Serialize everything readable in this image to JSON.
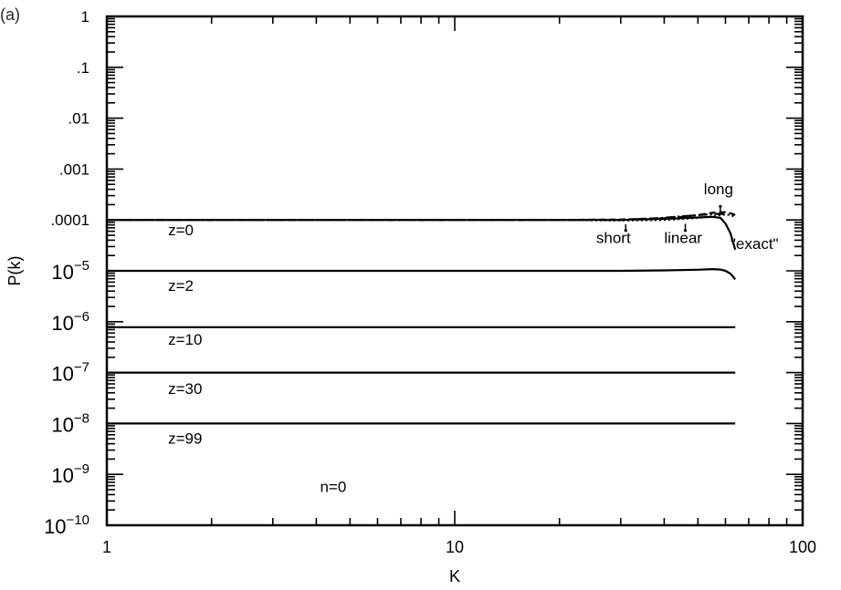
{
  "chart_data": {
    "type": "line",
    "title": "",
    "panel_label": "(a)",
    "xlabel": "K",
    "ylabel": "P(k)",
    "xscale": "log",
    "yscale": "log",
    "xlim": [
      1,
      100
    ],
    "ylim": [
      1e-10,
      1
    ],
    "grid": false,
    "x_ticks": [
      {
        "value": 1,
        "label": "1"
      },
      {
        "value": 10,
        "label": "10"
      },
      {
        "value": 100,
        "label": "100"
      }
    ],
    "y_ticks": [
      {
        "value": 1,
        "label": "1",
        "base": "",
        "exp": ""
      },
      {
        "value": 0.1,
        "label": ".1",
        "base": "",
        "exp": ""
      },
      {
        "value": 0.01,
        "label": ".01",
        "base": "",
        "exp": ""
      },
      {
        "value": 0.001,
        "label": ".001",
        "base": "",
        "exp": ""
      },
      {
        "value": 0.0001,
        "label": ".0001",
        "base": "",
        "exp": ""
      },
      {
        "value": 1e-05,
        "label": "",
        "base": "10",
        "exp": "−5"
      },
      {
        "value": 1e-06,
        "label": "",
        "base": "10",
        "exp": "−6"
      },
      {
        "value": 1e-07,
        "label": "",
        "base": "10",
        "exp": "−7"
      },
      {
        "value": 1e-08,
        "label": "",
        "base": "10",
        "exp": "−8"
      },
      {
        "value": 1e-09,
        "label": "",
        "base": "10",
        "exp": "−9"
      },
      {
        "value": 1e-10,
        "label": "",
        "base": "10",
        "exp": "−10"
      }
    ],
    "series": [
      {
        "style": "solid",
        "color": "#000000",
        "x": [
          1,
          10,
          20,
          30,
          40,
          45,
          50,
          55,
          58,
          60,
          62,
          63,
          64
        ],
        "y": [
          0.0001,
          0.0001,
          0.0001,
          0.0001,
          0.000105,
          0.000108,
          0.000112,
          0.000115,
          0.00011,
          8.5e-05,
          5.5e-05,
          3.8e-05,
          2.6e-05
        ]
      },
      {
        "style": "dotted",
        "color": "#000000",
        "x": [
          1,
          10,
          20,
          30,
          40,
          45,
          50,
          55,
          58,
          60,
          62,
          64
        ],
        "y": [
          0.0001,
          0.0001,
          0.0001,
          9.8e-05,
          0.0001,
          0.000105,
          0.00011,
          0.000118,
          0.000125,
          0.000128,
          0.000125,
          0.000115
        ]
      },
      {
        "style": "dashdot",
        "color": "#000000",
        "x": [
          1,
          10,
          20,
          30,
          40,
          45,
          50,
          55,
          58,
          60
        ],
        "y": [
          0.0001,
          0.0001,
          0.0001,
          0.0001,
          0.00011,
          0.000118,
          0.000124,
          0.00013,
          0.000132,
          0.00013
        ]
      },
      {
        "style": "dashed",
        "color": "#000000",
        "x": [
          1,
          10,
          20,
          30,
          40,
          45,
          50,
          55,
          58,
          60,
          62,
          64
        ],
        "y": [
          0.0001,
          0.0001,
          0.0001,
          0.000102,
          0.000108,
          0.000115,
          0.000125,
          0.000138,
          0.000142,
          0.000142,
          0.000135,
          0.000125
        ]
      },
      {
        "style": "solid",
        "color": "#000000",
        "x": [
          1,
          10,
          20,
          30,
          40,
          50,
          55,
          58,
          60,
          62,
          63,
          64
        ],
        "y": [
          1e-05,
          1e-05,
          1e-05,
          1e-05,
          1.02e-05,
          1.05e-05,
          1.08e-05,
          1.06e-05,
          1e-05,
          8.8e-06,
          7.8e-06,
          6.8e-06
        ]
      },
      {
        "style": "solid",
        "color": "#000000",
        "x": [
          1,
          64
        ],
        "y": [
          7.8e-07,
          7.8e-07
        ]
      },
      {
        "style": "solid",
        "color": "#000000",
        "x": [
          1,
          64
        ],
        "y": [
          1e-07,
          1e-07
        ]
      },
      {
        "style": "solid",
        "color": "#000000",
        "x": [
          1,
          64
        ],
        "y": [
          1e-08,
          1e-08
        ]
      }
    ],
    "annotations": [
      {
        "text": "z=0",
        "x": 1.5,
        "y": 5e-05
      },
      {
        "text": "z=2",
        "x": 1.5,
        "y": 4e-06
      },
      {
        "text": "z=10",
        "x": 1.5,
        "y": 3.5e-07
      },
      {
        "text": "z=30",
        "x": 1.5,
        "y": 3.8e-08
      },
      {
        "text": "z=99",
        "x": 1.5,
        "y": 4e-09
      },
      {
        "text": "n=0",
        "x": 4.1,
        "y": 4.5e-10
      },
      {
        "text": "long",
        "x": 52,
        "y": 0.00032
      },
      {
        "text": "short",
        "x": 25.5,
        "y": 3.5e-05
      },
      {
        "text": "linear",
        "x": 40,
        "y": 3.5e-05
      },
      {
        "text": "\"exact\"",
        "x": 62,
        "y": 2.7e-05
      }
    ],
    "pointers": [
      {
        "name": "short-pointer",
        "x": 31,
        "y1": 8.2e-05,
        "y2": 6.2e-05
      },
      {
        "name": "linear-pointer",
        "x": 46,
        "y1": 8.4e-05,
        "y2": 6.2e-05
      },
      {
        "name": "long-pointer",
        "x": 58,
        "y1": 0.000142,
        "y2": 0.000185
      }
    ]
  }
}
